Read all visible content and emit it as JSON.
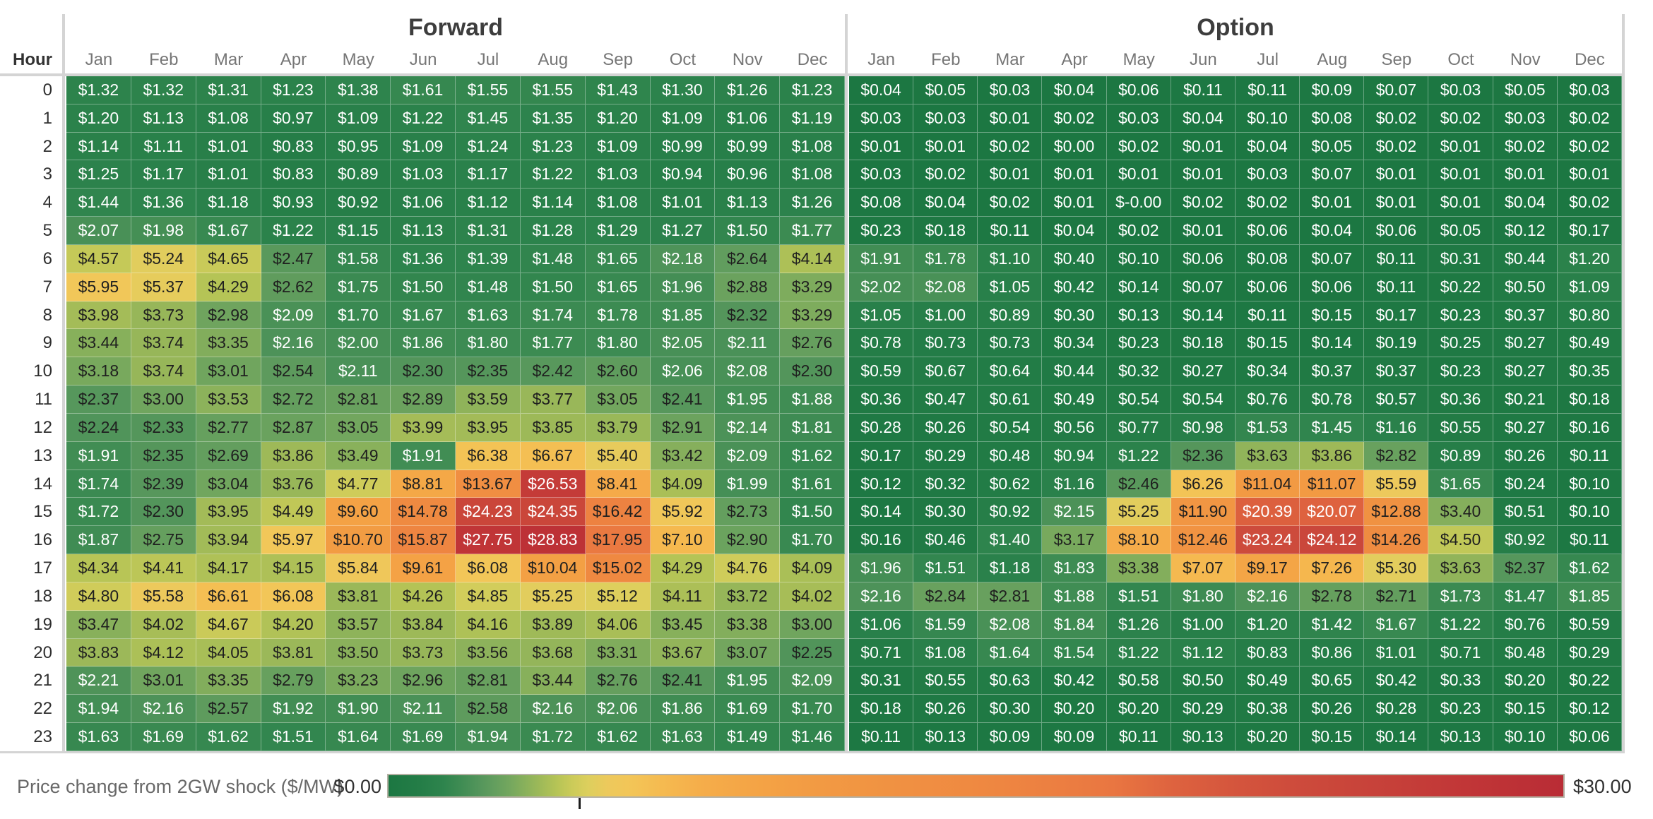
{
  "chart_data": {
    "type": "heatmap",
    "row_label_header": "Hour",
    "row_labels": [
      "0",
      "1",
      "2",
      "3",
      "4",
      "5",
      "6",
      "7",
      "8",
      "9",
      "10",
      "11",
      "12",
      "13",
      "14",
      "15",
      "16",
      "17",
      "18",
      "19",
      "20",
      "21",
      "22",
      "23"
    ],
    "columns": [
      "Jan",
      "Feb",
      "Mar",
      "Apr",
      "May",
      "Jun",
      "Jul",
      "Aug",
      "Sep",
      "Oct",
      "Nov",
      "Dec"
    ],
    "panels": [
      {
        "title": "Forward",
        "values": [
          [
            "$1.32",
            "$1.32",
            "$1.31",
            "$1.23",
            "$1.38",
            "$1.61",
            "$1.55",
            "$1.55",
            "$1.43",
            "$1.30",
            "$1.26",
            "$1.23"
          ],
          [
            "$1.20",
            "$1.13",
            "$1.08",
            "$0.97",
            "$1.09",
            "$1.22",
            "$1.45",
            "$1.35",
            "$1.20",
            "$1.09",
            "$1.06",
            "$1.19"
          ],
          [
            "$1.14",
            "$1.11",
            "$1.01",
            "$0.83",
            "$0.95",
            "$1.09",
            "$1.24",
            "$1.23",
            "$1.09",
            "$0.99",
            "$0.99",
            "$1.08"
          ],
          [
            "$1.25",
            "$1.17",
            "$1.01",
            "$0.83",
            "$0.89",
            "$1.03",
            "$1.17",
            "$1.22",
            "$1.03",
            "$0.94",
            "$0.96",
            "$1.08"
          ],
          [
            "$1.44",
            "$1.36",
            "$1.18",
            "$0.93",
            "$0.92",
            "$1.06",
            "$1.12",
            "$1.14",
            "$1.08",
            "$1.01",
            "$1.13",
            "$1.26"
          ],
          [
            "$2.07",
            "$1.98",
            "$1.67",
            "$1.22",
            "$1.15",
            "$1.13",
            "$1.31",
            "$1.28",
            "$1.29",
            "$1.27",
            "$1.50",
            "$1.77"
          ],
          [
            "$4.57",
            "$5.24",
            "$4.65",
            "$2.47",
            "$1.58",
            "$1.36",
            "$1.39",
            "$1.48",
            "$1.65",
            "$2.18",
            "$2.64",
            "$4.14"
          ],
          [
            "$5.95",
            "$5.37",
            "$4.29",
            "$2.62",
            "$1.75",
            "$1.50",
            "$1.48",
            "$1.50",
            "$1.65",
            "$1.96",
            "$2.88",
            "$3.29"
          ],
          [
            "$3.98",
            "$3.73",
            "$2.98",
            "$2.09",
            "$1.70",
            "$1.67",
            "$1.63",
            "$1.74",
            "$1.78",
            "$1.85",
            "$2.32",
            "$3.29"
          ],
          [
            "$3.44",
            "$3.74",
            "$3.35",
            "$2.16",
            "$2.00",
            "$1.86",
            "$1.80",
            "$1.77",
            "$1.80",
            "$2.05",
            "$2.11",
            "$2.76"
          ],
          [
            "$3.18",
            "$3.74",
            "$3.01",
            "$2.54",
            "$2.11",
            "$2.30",
            "$2.35",
            "$2.42",
            "$2.60",
            "$2.06",
            "$2.08",
            "$2.30"
          ],
          [
            "$2.37",
            "$3.00",
            "$3.53",
            "$2.72",
            "$2.81",
            "$2.89",
            "$3.59",
            "$3.77",
            "$3.05",
            "$2.41",
            "$1.95",
            "$1.88"
          ],
          [
            "$2.24",
            "$2.33",
            "$2.77",
            "$2.87",
            "$3.05",
            "$3.99",
            "$3.95",
            "$3.85",
            "$3.79",
            "$2.91",
            "$2.14",
            "$1.81"
          ],
          [
            "$1.91",
            "$2.35",
            "$2.69",
            "$3.86",
            "$3.49",
            "$1.91",
            "$6.38",
            "$6.67",
            "$5.40",
            "$3.42",
            "$2.09",
            "$1.62"
          ],
          [
            "$1.74",
            "$2.39",
            "$3.04",
            "$3.76",
            "$4.77",
            "$8.81",
            "$13.67",
            "$26.53",
            "$8.41",
            "$4.09",
            "$1.99",
            "$1.61"
          ],
          [
            "$1.72",
            "$2.30",
            "$3.95",
            "$4.49",
            "$9.60",
            "$14.78",
            "$24.23",
            "$24.35",
            "$16.42",
            "$5.92",
            "$2.73",
            "$1.50"
          ],
          [
            "$1.87",
            "$2.75",
            "$3.94",
            "$5.97",
            "$10.70",
            "$15.87",
            "$27.75",
            "$28.83",
            "$17.95",
            "$7.10",
            "$2.90",
            "$1.70"
          ],
          [
            "$4.34",
            "$4.41",
            "$4.17",
            "$4.15",
            "$5.84",
            "$9.61",
            "$6.08",
            "$10.04",
            "$15.02",
            "$4.29",
            "$4.76",
            "$4.09"
          ],
          [
            "$4.80",
            "$5.58",
            "$6.61",
            "$6.08",
            "$3.81",
            "$4.26",
            "$4.85",
            "$5.25",
            "$5.12",
            "$4.11",
            "$3.72",
            "$4.02"
          ],
          [
            "$3.47",
            "$4.02",
            "$4.67",
            "$4.20",
            "$3.57",
            "$3.84",
            "$4.16",
            "$3.89",
            "$4.06",
            "$3.45",
            "$3.38",
            "$3.00"
          ],
          [
            "$3.83",
            "$4.12",
            "$4.05",
            "$3.81",
            "$3.50",
            "$3.73",
            "$3.56",
            "$3.68",
            "$3.31",
            "$3.67",
            "$3.07",
            "$2.25"
          ],
          [
            "$2.21",
            "$3.01",
            "$3.35",
            "$2.79",
            "$3.23",
            "$2.96",
            "$2.81",
            "$3.44",
            "$2.76",
            "$2.41",
            "$1.95",
            "$2.09"
          ],
          [
            "$1.94",
            "$2.16",
            "$2.57",
            "$1.92",
            "$1.90",
            "$2.11",
            "$2.58",
            "$2.16",
            "$2.06",
            "$1.86",
            "$1.69",
            "$1.70"
          ],
          [
            "$1.63",
            "$1.69",
            "$1.62",
            "$1.51",
            "$1.64",
            "$1.69",
            "$1.94",
            "$1.72",
            "$1.62",
            "$1.63",
            "$1.49",
            "$1.46"
          ]
        ]
      },
      {
        "title": "Option",
        "values": [
          [
            "$0.04",
            "$0.05",
            "$0.03",
            "$0.04",
            "$0.06",
            "$0.11",
            "$0.11",
            "$0.09",
            "$0.07",
            "$0.03",
            "$0.05",
            "$0.03"
          ],
          [
            "$0.03",
            "$0.03",
            "$0.01",
            "$0.02",
            "$0.03",
            "$0.04",
            "$0.10",
            "$0.08",
            "$0.02",
            "$0.02",
            "$0.03",
            "$0.02"
          ],
          [
            "$0.01",
            "$0.01",
            "$0.02",
            "$0.00",
            "$0.02",
            "$0.01",
            "$0.04",
            "$0.05",
            "$0.02",
            "$0.01",
            "$0.02",
            "$0.02"
          ],
          [
            "$0.03",
            "$0.02",
            "$0.01",
            "$0.01",
            "$0.01",
            "$0.01",
            "$0.03",
            "$0.07",
            "$0.01",
            "$0.01",
            "$0.01",
            "$0.01"
          ],
          [
            "$0.08",
            "$0.04",
            "$0.02",
            "$0.01",
            "$-0.00",
            "$0.02",
            "$0.02",
            "$0.01",
            "$0.01",
            "$0.01",
            "$0.04",
            "$0.02"
          ],
          [
            "$0.23",
            "$0.18",
            "$0.11",
            "$0.04",
            "$0.02",
            "$0.01",
            "$0.06",
            "$0.04",
            "$0.06",
            "$0.05",
            "$0.12",
            "$0.17"
          ],
          [
            "$1.91",
            "$1.78",
            "$1.10",
            "$0.40",
            "$0.10",
            "$0.06",
            "$0.08",
            "$0.07",
            "$0.11",
            "$0.31",
            "$0.44",
            "$1.20"
          ],
          [
            "$2.02",
            "$2.08",
            "$1.05",
            "$0.42",
            "$0.14",
            "$0.07",
            "$0.06",
            "$0.06",
            "$0.11",
            "$0.22",
            "$0.50",
            "$1.09"
          ],
          [
            "$1.05",
            "$1.00",
            "$0.89",
            "$0.30",
            "$0.13",
            "$0.14",
            "$0.11",
            "$0.15",
            "$0.17",
            "$0.23",
            "$0.37",
            "$0.80"
          ],
          [
            "$0.78",
            "$0.73",
            "$0.73",
            "$0.34",
            "$0.23",
            "$0.18",
            "$0.15",
            "$0.14",
            "$0.19",
            "$0.25",
            "$0.27",
            "$0.49"
          ],
          [
            "$0.59",
            "$0.67",
            "$0.64",
            "$0.44",
            "$0.32",
            "$0.27",
            "$0.34",
            "$0.37",
            "$0.37",
            "$0.23",
            "$0.27",
            "$0.35"
          ],
          [
            "$0.36",
            "$0.47",
            "$0.61",
            "$0.49",
            "$0.54",
            "$0.54",
            "$0.76",
            "$0.78",
            "$0.57",
            "$0.36",
            "$0.21",
            "$0.18"
          ],
          [
            "$0.28",
            "$0.26",
            "$0.54",
            "$0.56",
            "$0.77",
            "$0.98",
            "$1.53",
            "$1.45",
            "$1.16",
            "$0.55",
            "$0.27",
            "$0.16"
          ],
          [
            "$0.17",
            "$0.29",
            "$0.48",
            "$0.94",
            "$1.22",
            "$2.36",
            "$3.63",
            "$3.86",
            "$2.82",
            "$0.89",
            "$0.26",
            "$0.11"
          ],
          [
            "$0.12",
            "$0.32",
            "$0.62",
            "$1.16",
            "$2.46",
            "$6.26",
            "$11.04",
            "$11.07",
            "$5.59",
            "$1.65",
            "$0.24",
            "$0.10"
          ],
          [
            "$0.14",
            "$0.30",
            "$0.92",
            "$2.15",
            "$5.25",
            "$11.90",
            "$20.39",
            "$20.07",
            "$12.88",
            "$3.40",
            "$0.51",
            "$0.10"
          ],
          [
            "$0.16",
            "$0.46",
            "$1.40",
            "$3.17",
            "$8.10",
            "$12.46",
            "$23.24",
            "$24.12",
            "$14.26",
            "$4.50",
            "$0.92",
            "$0.11"
          ],
          [
            "$1.96",
            "$1.51",
            "$1.18",
            "$1.83",
            "$3.38",
            "$7.07",
            "$9.17",
            "$7.26",
            "$5.30",
            "$3.63",
            "$2.37",
            "$1.62"
          ],
          [
            "$2.16",
            "$2.84",
            "$2.81",
            "$1.88",
            "$1.51",
            "$1.80",
            "$2.16",
            "$2.78",
            "$2.71",
            "$1.73",
            "$1.47",
            "$1.85"
          ],
          [
            "$1.06",
            "$1.59",
            "$2.08",
            "$1.84",
            "$1.26",
            "$1.00",
            "$1.20",
            "$1.42",
            "$1.67",
            "$1.22",
            "$0.76",
            "$0.59"
          ],
          [
            "$0.71",
            "$1.08",
            "$1.64",
            "$1.54",
            "$1.22",
            "$1.12",
            "$0.83",
            "$0.86",
            "$1.01",
            "$0.71",
            "$0.48",
            "$0.29"
          ],
          [
            "$0.31",
            "$0.55",
            "$0.63",
            "$0.42",
            "$0.58",
            "$0.50",
            "$0.49",
            "$0.65",
            "$0.42",
            "$0.33",
            "$0.20",
            "$0.22"
          ],
          [
            "$0.18",
            "$0.26",
            "$0.30",
            "$0.20",
            "$0.20",
            "$0.29",
            "$0.38",
            "$0.26",
            "$0.28",
            "$0.23",
            "$0.15",
            "$0.12"
          ],
          [
            "$0.11",
            "$0.13",
            "$0.09",
            "$0.09",
            "$0.11",
            "$0.13",
            "$0.20",
            "$0.15",
            "$0.14",
            "$0.13",
            "$0.10",
            "$0.06"
          ]
        ]
      }
    ],
    "legend": {
      "label": "Price change from 2GW shock ($/MW)",
      "min_label": "$0.00",
      "max_label": "$30.00",
      "domain": [
        0,
        30
      ],
      "center_tick_fraction": 0.163
    },
    "colormap": {
      "stops": [
        [
          0,
          "#1c7742"
        ],
        [
          0.8,
          "#247d47"
        ],
        [
          1.4,
          "#2e844d"
        ],
        [
          1.9,
          "#418d54"
        ],
        [
          2.3,
          "#53955b"
        ],
        [
          2.7,
          "#639e5e"
        ],
        [
          3.1,
          "#74a75e"
        ],
        [
          3.5,
          "#8ab15b"
        ],
        [
          3.9,
          "#a0ba58"
        ],
        [
          4.3,
          "#b6c456"
        ],
        [
          4.7,
          "#cccb59"
        ],
        [
          5.1,
          "#ddcf5d"
        ],
        [
          5.6,
          "#edc95c"
        ],
        [
          6.2,
          "#f3c557"
        ],
        [
          7,
          "#f5ba50"
        ],
        [
          8,
          "#f5ad4a"
        ],
        [
          9.5,
          "#f4a345"
        ],
        [
          11,
          "#f29a43"
        ],
        [
          13,
          "#f09142"
        ],
        [
          15,
          "#ef8941"
        ],
        [
          17,
          "#ec7f41"
        ],
        [
          18.5,
          "#e97641"
        ],
        [
          20,
          "#de633f"
        ],
        [
          21.5,
          "#d5563d"
        ],
        [
          23,
          "#ce4c3c"
        ],
        [
          24.5,
          "#c9453a"
        ],
        [
          26,
          "#c53e39"
        ],
        [
          27.5,
          "#c13637"
        ],
        [
          29,
          "#bc3036"
        ],
        [
          30,
          "#b92c35"
        ]
      ],
      "text_dark": "#1f1f1f",
      "text_light": "#ffffff",
      "text_white_below": 2.23,
      "text_white_above": 19
    }
  }
}
